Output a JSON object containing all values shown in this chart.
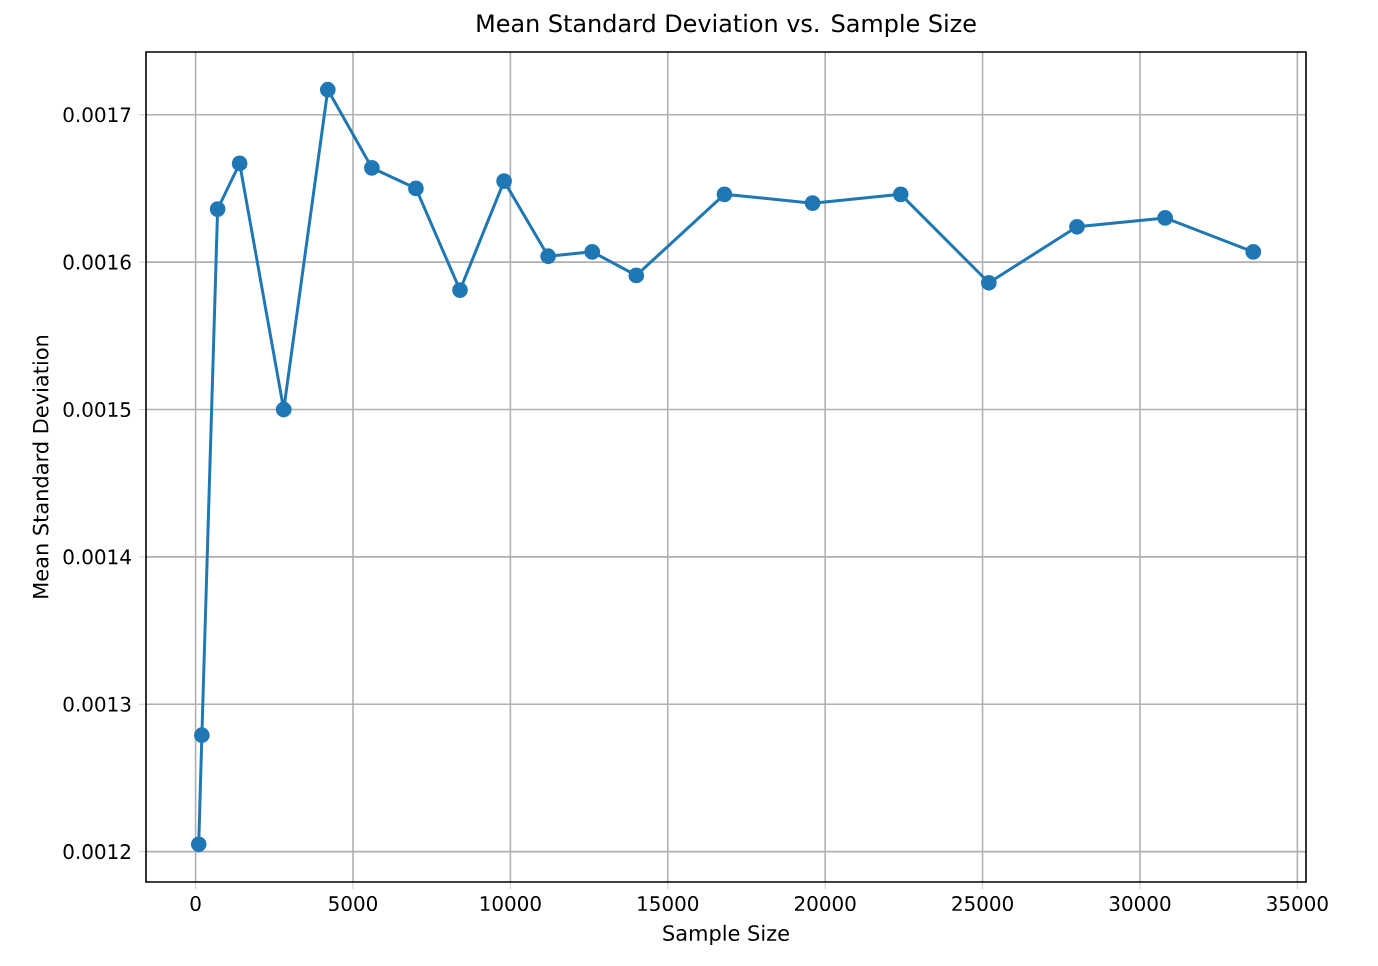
{
  "chart_data": {
    "type": "line",
    "title": "Mean Standard Deviation vs. Sample Size",
    "xlabel": "Sample Size",
    "ylabel": "Mean Standard Deviation",
    "x": [
      100,
      200,
      700,
      1400,
      2800,
      4200,
      5600,
      7000,
      8400,
      9800,
      11200,
      12600,
      14000,
      16800,
      19600,
      22400,
      25200,
      28000,
      30800,
      33600
    ],
    "series": [
      {
        "color": "#1f77b4",
        "values": [
          0.001205,
          0.001279,
          0.001636,
          0.001667,
          0.0015,
          0.001717,
          0.001664,
          0.00165,
          0.001581,
          0.001655,
          0.001604,
          0.001607,
          0.001591,
          0.001646,
          0.00164,
          0.001646,
          0.001586,
          0.001624,
          0.00163,
          0.001607
        ]
      }
    ],
    "xlim": [
      -1575,
      35275
    ],
    "ylim": [
      0.0011794,
      0.0017426
    ],
    "xticks": [
      0,
      5000,
      10000,
      15000,
      20000,
      25000,
      30000,
      35000
    ],
    "yticks": [
      0.0012,
      0.0013,
      0.0014,
      0.0015,
      0.0016,
      0.0017
    ],
    "grid": true,
    "marker": "circle",
    "line_style": "solid"
  }
}
